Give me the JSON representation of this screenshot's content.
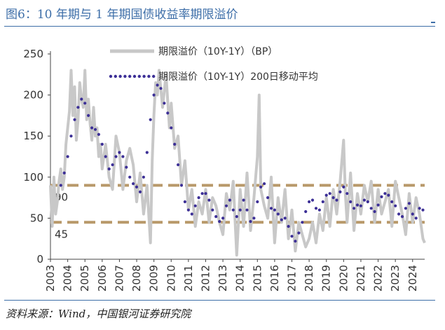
{
  "title": "图6：10 年期与 1 年期国债收益率期限溢价",
  "source": "资料来源：Wind，中国银河证券研究院",
  "colors": {
    "raw": "#c8c8c8",
    "ma": "#3c2f96",
    "ref": "#b8996a",
    "title": "#3d6ea8"
  },
  "chart_data": {
    "type": "line",
    "ylim": [
      0,
      250
    ],
    "yticks": [
      0,
      50,
      100,
      150,
      200,
      250
    ],
    "xlim": [
      2003,
      2024.7
    ],
    "xticks": [
      "2003",
      "2004",
      "2005",
      "2006",
      "2007",
      "2008",
      "2009",
      "2010",
      "2011",
      "2012",
      "2013",
      "2014",
      "2015",
      "2016",
      "2017",
      "2018",
      "2019",
      "2020",
      "2021",
      "2022",
      "2023",
      "2024"
    ],
    "legend_position": "top",
    "grid": false,
    "reference_lines": [
      {
        "value": 90,
        "label": "90"
      },
      {
        "value": 45,
        "label": "45"
      }
    ],
    "series": [
      {
        "name": "期限溢价（10Y-1Y）（BP）",
        "style": "solid-thick",
        "x": [
          2003.0,
          2003.1,
          2003.2,
          2003.3,
          2003.4,
          2003.5,
          2003.6,
          2003.7,
          2003.8,
          2003.9,
          2004.0,
          2004.1,
          2004.2,
          2004.3,
          2004.4,
          2004.5,
          2004.6,
          2004.7,
          2004.8,
          2004.9,
          2005.0,
          2005.1,
          2005.2,
          2005.3,
          2005.4,
          2005.5,
          2005.6,
          2005.7,
          2005.8,
          2005.9,
          2006.0,
          2006.2,
          2006.4,
          2006.6,
          2006.8,
          2007.0,
          2007.2,
          2007.4,
          2007.6,
          2007.8,
          2008.0,
          2008.2,
          2008.4,
          2008.6,
          2008.8,
          2008.9,
          2009.0,
          2009.1,
          2009.2,
          2009.3,
          2009.5,
          2009.7,
          2009.9,
          2010.0,
          2010.2,
          2010.4,
          2010.6,
          2010.8,
          2011.0,
          2011.2,
          2011.4,
          2011.6,
          2011.8,
          2012.0,
          2012.2,
          2012.4,
          2012.6,
          2012.8,
          2013.0,
          2013.2,
          2013.4,
          2013.6,
          2013.8,
          2014.0,
          2014.2,
          2014.4,
          2014.6,
          2014.8,
          2015.0,
          2015.1,
          2015.2,
          2015.4,
          2015.6,
          2015.8,
          2016.0,
          2016.2,
          2016.4,
          2016.6,
          2016.8,
          2017.0,
          2017.2,
          2017.4,
          2017.6,
          2017.8,
          2018.0,
          2018.2,
          2018.4,
          2018.6,
          2018.8,
          2019.0,
          2019.2,
          2019.4,
          2019.6,
          2019.8,
          2020.0,
          2020.1,
          2020.2,
          2020.4,
          2020.6,
          2020.8,
          2021.0,
          2021.2,
          2021.4,
          2021.6,
          2021.8,
          2022.0,
          2022.2,
          2022.4,
          2022.6,
          2022.8,
          2023.0,
          2023.2,
          2023.4,
          2023.6,
          2023.8,
          2024.0,
          2024.2,
          2024.4,
          2024.6,
          2024.7
        ],
        "y": [
          90,
          40,
          100,
          55,
          70,
          95,
          110,
          85,
          100,
          140,
          160,
          180,
          230,
          175,
          210,
          145,
          170,
          215,
          195,
          185,
          230,
          170,
          195,
          165,
          145,
          185,
          150,
          160,
          125,
          140,
          110,
          140,
          100,
          85,
          150,
          130,
          85,
          120,
          135,
          115,
          70,
          105,
          55,
          90,
          20,
          120,
          175,
          215,
          200,
          230,
          185,
          225,
          160,
          190,
          135,
          150,
          90,
          120,
          60,
          85,
          40,
          70,
          55,
          85,
          45,
          75,
          65,
          45,
          30,
          80,
          60,
          95,
          5,
          85,
          40,
          105,
          35,
          75,
          125,
          200,
          85,
          65,
          50,
          100,
          20,
          75,
          45,
          85,
          25,
          60,
          10,
          45,
          30,
          15,
          25,
          45,
          20,
          55,
          35,
          75,
          40,
          85,
          55,
          95,
          145,
          80,
          45,
          105,
          35,
          80,
          55,
          90,
          70,
          95,
          45,
          85,
          55,
          70,
          85,
          40,
          95,
          75,
          55,
          30,
          80,
          45,
          75,
          55,
          25,
          20
        ]
      },
      {
        "name": "期限溢价（10Y-1Y）200日移动平均",
        "style": "dotted",
        "x": [
          2003.6,
          2003.8,
          2004.0,
          2004.2,
          2004.4,
          2004.6,
          2004.8,
          2005.0,
          2005.2,
          2005.4,
          2005.6,
          2005.8,
          2006.0,
          2006.2,
          2006.4,
          2006.6,
          2006.8,
          2007.0,
          2007.2,
          2007.4,
          2007.6,
          2007.8,
          2008.0,
          2008.2,
          2008.4,
          2008.6,
          2008.8,
          2009.0,
          2009.2,
          2009.4,
          2009.6,
          2009.8,
          2010.0,
          2010.2,
          2010.4,
          2010.6,
          2010.8,
          2011.0,
          2011.2,
          2011.4,
          2011.6,
          2011.8,
          2012.0,
          2012.2,
          2012.4,
          2012.6,
          2012.8,
          2013.0,
          2013.2,
          2013.4,
          2013.6,
          2013.8,
          2014.0,
          2014.2,
          2014.4,
          2014.6,
          2014.8,
          2015.0,
          2015.2,
          2015.4,
          2015.6,
          2015.8,
          2016.0,
          2016.2,
          2016.4,
          2016.6,
          2016.8,
          2017.0,
          2017.2,
          2017.4,
          2017.6,
          2017.8,
          2018.0,
          2018.2,
          2018.4,
          2018.6,
          2018.8,
          2019.0,
          2019.2,
          2019.4,
          2019.6,
          2019.8,
          2020.0,
          2020.2,
          2020.4,
          2020.6,
          2020.8,
          2021.0,
          2021.2,
          2021.4,
          2021.6,
          2021.8,
          2022.0,
          2022.2,
          2022.4,
          2022.6,
          2022.8,
          2023.0,
          2023.2,
          2023.4,
          2023.6,
          2023.8,
          2024.0,
          2024.2,
          2024.4,
          2024.6
        ],
        "y": [
          90,
          105,
          125,
          150,
          170,
          185,
          195,
          190,
          175,
          160,
          158,
          152,
          140,
          125,
          110,
          115,
          125,
          130,
          125,
          112,
          100,
          92,
          88,
          82,
          100,
          130,
          170,
          200,
          212,
          208,
          190,
          178,
          160,
          140,
          115,
          90,
          70,
          60,
          55,
          65,
          75,
          80,
          80,
          72,
          60,
          52,
          46,
          50,
          65,
          72,
          60,
          52,
          60,
          72,
          60,
          46,
          50,
          70,
          88,
          92,
          75,
          62,
          60,
          55,
          48,
          50,
          40,
          28,
          22,
          32,
          45,
          58,
          70,
          72,
          62,
          60,
          70,
          78,
          80,
          75,
          72,
          82,
          88,
          80,
          70,
          62,
          66,
          65,
          72,
          70,
          62,
          58,
          66,
          76,
          80,
          78,
          70,
          65,
          55,
          52,
          62,
          68,
          55,
          50,
          62,
          60
        ]
      }
    ]
  }
}
